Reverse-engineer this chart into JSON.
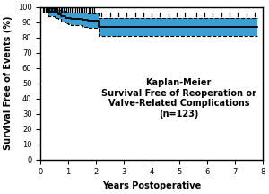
{
  "title_line1": "Kaplan-Meier",
  "title_line2": "Survival Free of Reoperation or",
  "title_line3": "Valve-Related Complications",
  "title_line4": "(n=123)",
  "xlabel": "Years Postoperative",
  "ylabel": "Survival Free of Events (%)",
  "xlim": [
    0,
    8
  ],
  "ylim": [
    0,
    100
  ],
  "xticks": [
    0,
    1,
    2,
    3,
    4,
    5,
    6,
    7,
    8
  ],
  "yticks": [
    0,
    10,
    20,
    30,
    40,
    50,
    60,
    70,
    80,
    90,
    100
  ],
  "km_x": [
    0,
    0.3,
    0.5,
    0.65,
    0.75,
    0.9,
    1.0,
    1.1,
    1.5,
    1.7,
    2.0,
    2.1,
    7.8
  ],
  "km_y": [
    100,
    97,
    96,
    95,
    94,
    93,
    92.5,
    92,
    91.5,
    91,
    91,
    87,
    87
  ],
  "ci_upper": [
    100,
    99,
    98.5,
    98,
    97.5,
    97,
    96.5,
    96.5,
    96,
    95.5,
    95.5,
    93,
    93
  ],
  "ci_lower": [
    100,
    94,
    93,
    92,
    90.5,
    89,
    88.5,
    88,
    87,
    86.5,
    86,
    81,
    81
  ],
  "fill_color": "#3b9fd4",
  "km_color": "#000000",
  "ci_color": "#000000",
  "censor_early_x": [
    0.08,
    0.12,
    0.18,
    0.22,
    0.28,
    0.32,
    0.38,
    0.42,
    0.48,
    0.52,
    0.58,
    0.62,
    0.68,
    0.72,
    0.78,
    0.82,
    0.88,
    0.92,
    0.98,
    1.05,
    1.12,
    1.18,
    1.25,
    1.32,
    1.38,
    1.45,
    1.52,
    1.58,
    1.65,
    1.72,
    1.78,
    1.85,
    1.92
  ],
  "censor_late_x": [
    2.2,
    2.5,
    2.8,
    3.1,
    3.4,
    3.7,
    4.0,
    4.3,
    4.6,
    4.9,
    5.2,
    5.6,
    5.9,
    6.2,
    6.5,
    6.8,
    7.1,
    7.4,
    7.7
  ],
  "background_color": "#ffffff",
  "title_fontsize": 7.0,
  "axis_label_fontsize": 7.0,
  "tick_fontsize": 6.0
}
